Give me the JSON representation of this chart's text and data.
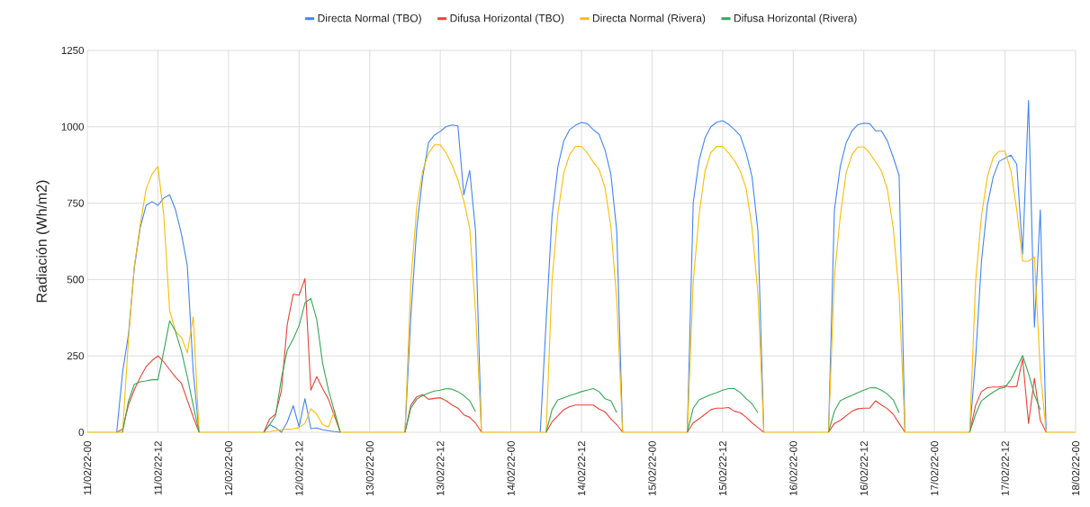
{
  "chart_data": {
    "type": "line",
    "ylabel": "Radiación (Wh/m2)",
    "grid": true,
    "legend": "top",
    "categories": [
      "11/02/22-00",
      null,
      null,
      null,
      null,
      null,
      null,
      null,
      null,
      null,
      null,
      null,
      "11/02/22-12",
      null,
      null,
      null,
      null,
      null,
      null,
      null,
      null,
      null,
      null,
      null,
      "12/02/22-00",
      null,
      null,
      null,
      null,
      null,
      null,
      null,
      null,
      null,
      null,
      null,
      "12/02/22-12",
      null,
      null,
      null,
      null,
      null,
      null,
      null,
      null,
      null,
      null,
      null,
      "13/02/22-00",
      null,
      null,
      null,
      null,
      null,
      null,
      null,
      null,
      null,
      null,
      null,
      "13/02/22-12",
      null,
      null,
      null,
      null,
      null,
      null,
      null,
      null,
      null,
      null,
      null,
      "14/02/22-00",
      null,
      null,
      null,
      null,
      null,
      null,
      null,
      null,
      null,
      null,
      null,
      "14/02/22-12",
      null,
      null,
      null,
      null,
      null,
      null,
      null,
      null,
      null,
      null,
      null,
      "15/02/22-00",
      null,
      null,
      null,
      null,
      null,
      null,
      null,
      null,
      null,
      null,
      null,
      "15/02/22-12",
      null,
      null,
      null,
      null,
      null,
      null,
      null,
      null,
      null,
      null,
      null,
      "16/02/22-00",
      null,
      null,
      null,
      null,
      null,
      null,
      null,
      null,
      null,
      null,
      null,
      "16/02/22-12",
      null,
      null,
      null,
      null,
      null,
      null,
      null,
      null,
      null,
      null,
      null,
      "17/02/22-00",
      null,
      null,
      null,
      null,
      null,
      null,
      null,
      null,
      null,
      null,
      null,
      "17/02/22-12",
      null,
      null,
      null,
      null,
      null,
      null,
      null,
      null,
      null,
      null,
      null,
      "18/02/22-00"
    ],
    "ylim": [
      0,
      1250
    ],
    "yticks": [
      0,
      250,
      500,
      750,
      1000,
      1250
    ],
    "series": [
      {
        "name": "Directa Normal (TBO)",
        "color": "#4285f4",
        "values": [
          null,
          null,
          null,
          null,
          null,
          0,
          197,
          320,
          540,
          670,
          743,
          755,
          743,
          767,
          777,
          728,
          649,
          546,
          200,
          0,
          null,
          null,
          null,
          null,
          null,
          null,
          null,
          null,
          null,
          null,
          0,
          25,
          15,
          0,
          34,
          87,
          18,
          110,
          12,
          14,
          8,
          5,
          2,
          0,
          null,
          null,
          null,
          null,
          null,
          null,
          null,
          null,
          null,
          null,
          0,
          380,
          667,
          834,
          948,
          973,
          985,
          1001,
          1006,
          1003,
          777,
          857,
          659,
          0,
          null,
          null,
          null,
          null,
          null,
          null,
          null,
          null,
          null,
          0,
          364,
          708,
          870,
          954,
          991,
          1005,
          1014,
          1010,
          991,
          975,
          924,
          845,
          659,
          0,
          null,
          null,
          null,
          null,
          null,
          null,
          null,
          null,
          null,
          null,
          0,
          752,
          890,
          963,
          1000,
          1015,
          1020,
          1008,
          991,
          971,
          914,
          836,
          659,
          0,
          null,
          null,
          null,
          null,
          null,
          null,
          null,
          null,
          null,
          null,
          0,
          728,
          870,
          948,
          987,
          1007,
          1012,
          1010,
          987,
          987,
          954,
          900,
          841,
          0,
          null,
          null,
          null,
          null,
          null,
          null,
          null,
          null,
          null,
          null,
          0,
          240,
          560,
          743,
          836,
          887,
          897,
          907,
          877,
          584,
          1086,
          344,
          728,
          0,
          null,
          null,
          null,
          null,
          null
        ]
      },
      {
        "name": "Difusa Horizontal (TBO)",
        "color": "#ea4335",
        "values": [
          null,
          null,
          null,
          null,
          null,
          0,
          10,
          90,
          140,
          180,
          215,
          235,
          250,
          230,
          205,
          180,
          160,
          105,
          50,
          0,
          null,
          null,
          null,
          null,
          null,
          null,
          null,
          null,
          null,
          null,
          0,
          44,
          59,
          137,
          354,
          452,
          449,
          503,
          138,
          182,
          143,
          108,
          54,
          0,
          null,
          null,
          null,
          null,
          null,
          null,
          null,
          null,
          null,
          null,
          0,
          89,
          116,
          123,
          108,
          111,
          113,
          103,
          89,
          79,
          57,
          49,
          30,
          0,
          null,
          null,
          null,
          null,
          null,
          null,
          null,
          null,
          null,
          null,
          0,
          34,
          54,
          74,
          84,
          89,
          89,
          89,
          89,
          76,
          67,
          44,
          25,
          0,
          null,
          null,
          null,
          null,
          null,
          null,
          null,
          null,
          null,
          null,
          0,
          31,
          44,
          59,
          74,
          79,
          79,
          81,
          69,
          64,
          49,
          31,
          15,
          0,
          null,
          null,
          null,
          null,
          null,
          null,
          null,
          null,
          null,
          null,
          0,
          29,
          39,
          54,
          69,
          77,
          79,
          79,
          103,
          89,
          77,
          59,
          29,
          0,
          null,
          null,
          null,
          null,
          null,
          null,
          null,
          null,
          null,
          null,
          0,
          88,
          133,
          146,
          148,
          148,
          152,
          148,
          150,
          241,
          29,
          177,
          39,
          0,
          null,
          null,
          null,
          null,
          null
        ]
      },
      {
        "name": "Directa Normal (Rivera)",
        "color": "#fbbc04",
        "values": [
          0,
          0,
          0,
          0,
          0,
          0,
          0,
          305,
          545,
          680,
          797,
          845,
          870,
          710,
          398,
          330,
          310,
          260,
          378,
          0,
          0,
          0,
          0,
          0,
          0,
          0,
          0,
          0,
          0,
          0,
          0,
          2,
          5,
          8,
          10,
          11,
          15,
          29,
          77,
          59,
          25,
          17,
          69,
          0,
          0,
          0,
          0,
          0,
          0,
          0,
          0,
          0,
          0,
          0,
          0,
          492,
          737,
          855,
          914,
          941,
          941,
          914,
          875,
          826,
          757,
          669,
          393,
          0,
          0,
          0,
          0,
          0,
          0,
          0,
          0,
          0,
          0,
          0,
          0,
          496,
          717,
          850,
          909,
          936,
          936,
          914,
          885,
          860,
          801,
          673,
          433,
          0,
          0,
          0,
          0,
          0,
          0,
          0,
          0,
          0,
          0,
          0,
          0,
          492,
          712,
          855,
          916,
          936,
          936,
          914,
          890,
          855,
          798,
          669,
          452,
          0,
          0,
          0,
          0,
          0,
          0,
          0,
          0,
          0,
          0,
          0,
          0,
          511,
          708,
          850,
          909,
          934,
          934,
          914,
          885,
          855,
          796,
          669,
          452,
          0,
          0,
          0,
          0,
          0,
          0,
          0,
          0,
          0,
          0,
          0,
          0,
          492,
          708,
          836,
          900,
          920,
          920,
          856,
          728,
          560,
          560,
          574,
          200,
          0,
          0,
          0,
          0,
          0,
          0
        ]
      },
      {
        "name": "Difusa Horizontal (Rivera)",
        "color": "#34a853",
        "values": [
          null,
          null,
          null,
          null,
          null,
          null,
          0,
          103,
          157,
          165,
          168,
          172,
          172,
          265,
          365,
          330,
          265,
          182,
          88,
          0,
          null,
          null,
          null,
          null,
          null,
          null,
          null,
          null,
          null,
          null,
          0,
          25,
          54,
          177,
          270,
          305,
          349,
          423,
          438,
          369,
          226,
          138,
          69,
          0,
          null,
          null,
          null,
          null,
          null,
          null,
          null,
          null,
          null,
          null,
          0,
          79,
          108,
          120,
          128,
          135,
          138,
          143,
          141,
          133,
          120,
          103,
          67,
          null,
          null,
          null,
          null,
          null,
          null,
          null,
          null,
          null,
          null,
          null,
          0,
          74,
          106,
          113,
          120,
          126,
          133,
          138,
          143,
          133,
          110,
          103,
          64,
          null,
          null,
          null,
          null,
          null,
          null,
          null,
          null,
          null,
          null,
          null,
          0,
          79,
          106,
          115,
          123,
          130,
          138,
          143,
          143,
          130,
          110,
          93,
          64,
          null,
          null,
          null,
          null,
          null,
          null,
          null,
          null,
          null,
          null,
          null,
          0,
          69,
          103,
          113,
          121,
          130,
          138,
          145,
          146,
          138,
          125,
          106,
          64,
          null,
          null,
          null,
          null,
          null,
          null,
          null,
          null,
          null,
          null,
          null,
          0,
          59,
          103,
          118,
          131,
          143,
          147,
          172,
          211,
          251,
          192,
          123,
          74,
          null,
          null,
          null,
          null,
          null,
          null
        ]
      }
    ]
  }
}
